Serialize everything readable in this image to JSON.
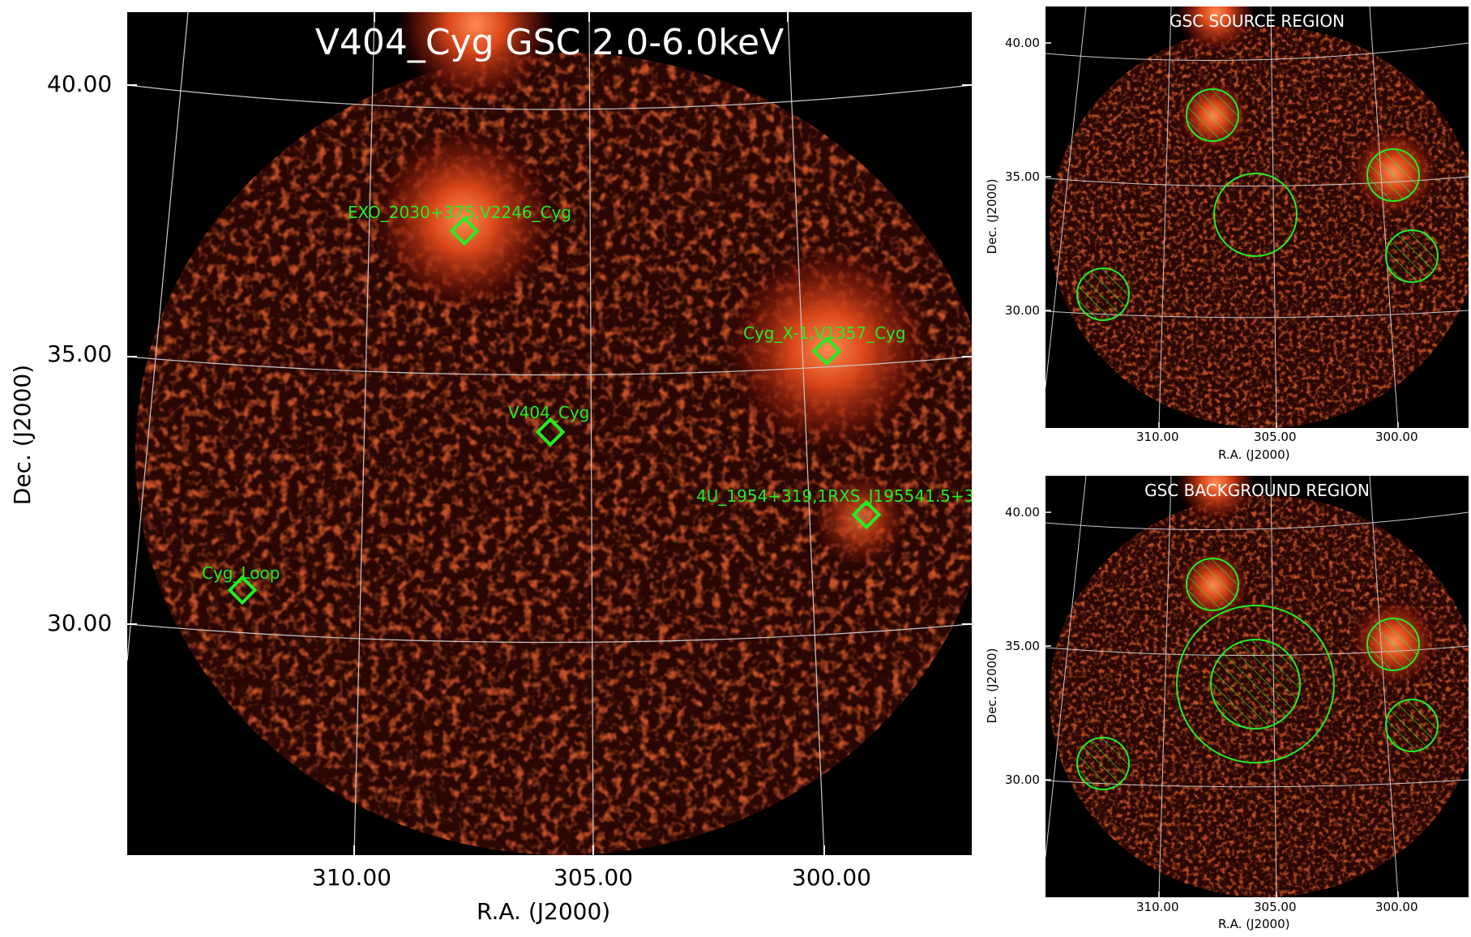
{
  "main": {
    "title": "V404_Cyg GSC 2.0-6.0keV",
    "xlabel": "R.A. (J2000)",
    "ylabel": "Dec. (J2000)",
    "xticks": [
      "310.00",
      "305.00",
      "300.00"
    ],
    "yticks": [
      "40.00",
      "35.00",
      "30.00"
    ],
    "sources": [
      {
        "name": "EXO_2030+375,V2246_Cyg"
      },
      {
        "name": "Cyg_X-1,V1357_Cyg"
      },
      {
        "name": "V404_Cyg"
      },
      {
        "name": "4U_1954+319,1RXS_J195541.5+3"
      },
      {
        "name": "Cyg_Loop"
      }
    ]
  },
  "source_region": {
    "title": "GSC SOURCE REGION",
    "xlabel": "R.A. (J2000)",
    "ylabel": "Dec. (J2000)",
    "xticks": [
      "310.00",
      "305.00",
      "300.00"
    ],
    "yticks": [
      "40.00",
      "35.00",
      "30.00"
    ]
  },
  "background_region": {
    "title": "GSC BACKGROUND REGION",
    "xlabel": "R.A. (J2000)",
    "ylabel": "Dec. (J2000)",
    "xticks": [
      "310.00",
      "305.00",
      "300.00"
    ],
    "yticks": [
      "40.00",
      "35.00",
      "30.00"
    ]
  },
  "colors": {
    "background": "#000000",
    "emission": "#c83010",
    "marker": "#22ee22",
    "grid": "#bbbbbb"
  }
}
